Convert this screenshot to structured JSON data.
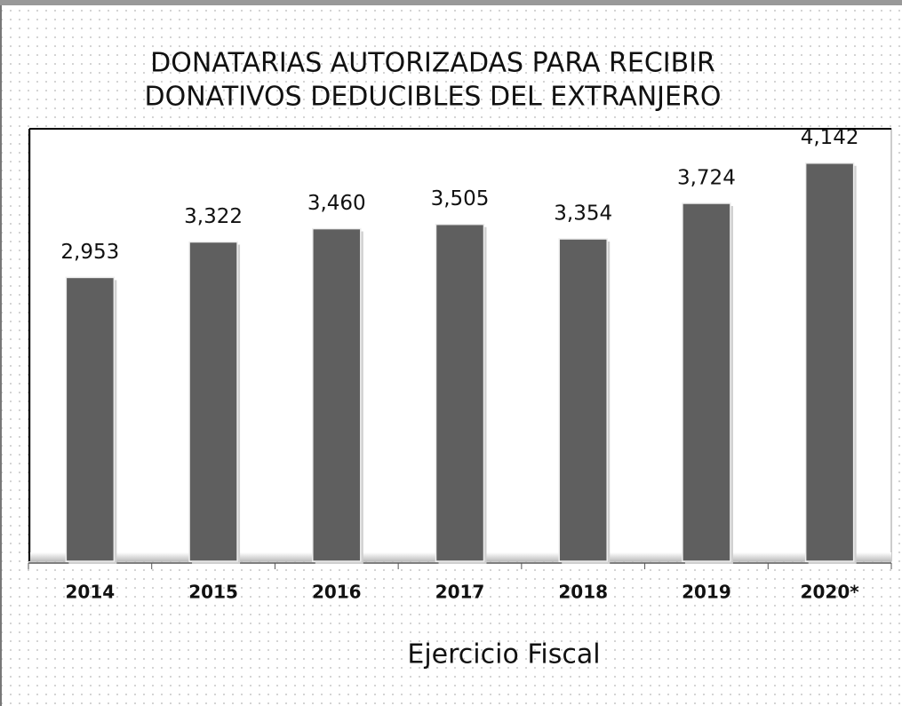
{
  "chart_data": {
    "type": "bar",
    "title": [
      "DONATARIAS AUTORIZADAS PARA RECIBIR",
      "DONATIVOS DEDUCIBLES DEL EXTRANJERO"
    ],
    "x_label": "Ejercicio Fiscal",
    "categories": [
      "2014",
      "2015",
      "2016",
      "2017",
      "2018",
      "2019",
      "2020*"
    ],
    "values": [
      2953,
      3322,
      3460,
      3505,
      3354,
      3724,
      4142
    ],
    "value_labels": [
      "2,953",
      "3,322",
      "3,460",
      "3,505",
      "3,354",
      "3,724",
      "4,142"
    ],
    "color": "#5f5f5f",
    "ylim": [
      0,
      4500
    ]
  }
}
